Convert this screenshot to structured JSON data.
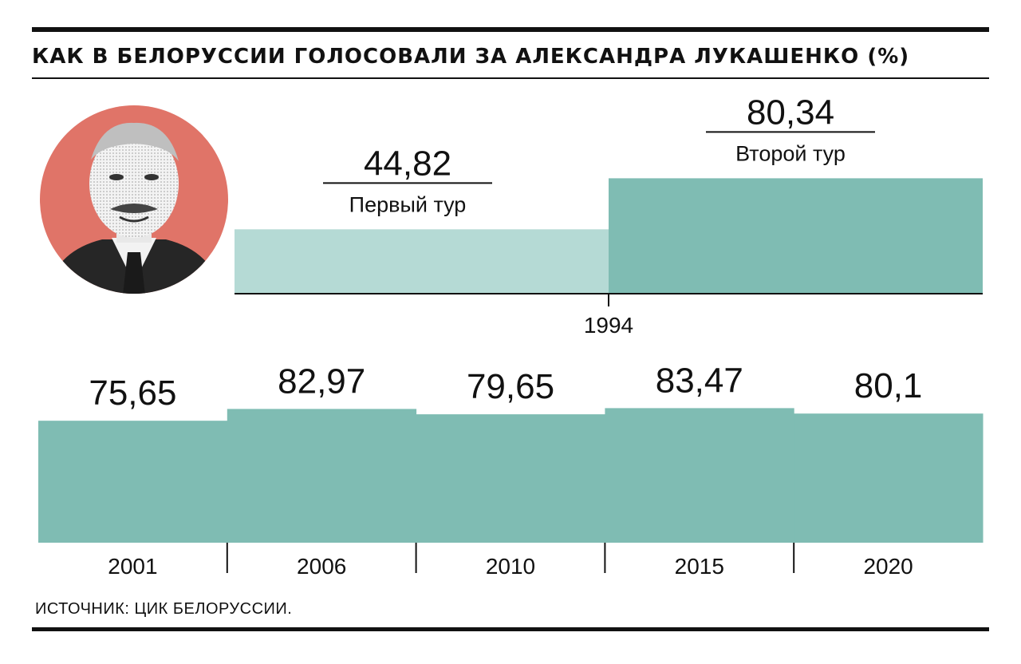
{
  "header": {
    "title": "КАК В БЕЛОРУССИИ ГОЛОСОВАЛИ ЗА АЛЕКСАНДРА ЛУКАШЕНКО (%)"
  },
  "footer": {
    "source": "ИСТОЧНИК: ЦИК БЕЛОРУССИИ."
  },
  "colors": {
    "bar_primary": "#7fbcb3",
    "bar_light": "#b5dad5",
    "portrait_bg": "#e07468",
    "text": "#111111"
  },
  "chart_data": [
    {
      "type": "bar",
      "title": "1994",
      "categories": [
        "Первый тур",
        "Второй тур"
      ],
      "values": [
        44.82,
        80.34
      ],
      "value_labels": [
        "44,82",
        "80,34"
      ],
      "x_tick": "1994"
    },
    {
      "type": "bar",
      "categories": [
        "2001",
        "2006",
        "2010",
        "2015",
        "2020"
      ],
      "values": [
        75.65,
        82.97,
        79.65,
        83.47,
        80.1
      ],
      "value_labels": [
        "75,65",
        "82,97",
        "79,65",
        "83,47",
        "80,1"
      ]
    }
  ]
}
